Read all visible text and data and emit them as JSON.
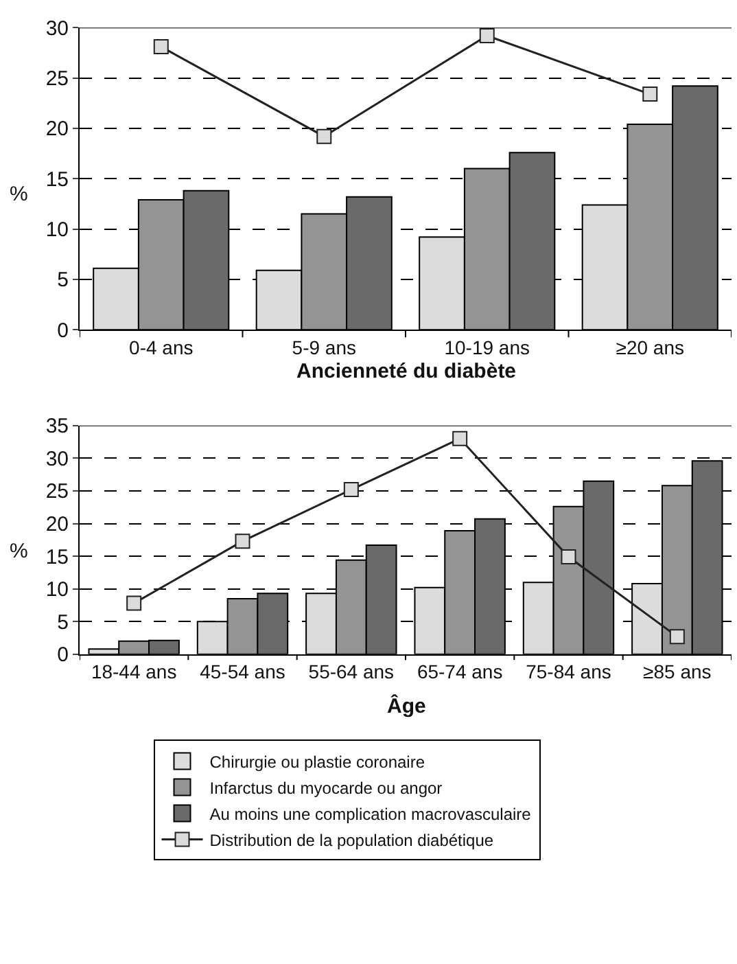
{
  "chart_data": [
    {
      "type": "bar",
      "xlabel": "Ancienneté du diabète",
      "ylabel": "%",
      "categories": [
        "0-4 ans",
        "5-9 ans",
        "10-19 ans",
        "≥20 ans"
      ],
      "ylim": [
        0,
        30
      ],
      "yticks": [
        0,
        5,
        10,
        15,
        20,
        25,
        30
      ],
      "grid": "y",
      "legend": false,
      "marker": "square",
      "series": [
        {
          "color": "#dcdcdc",
          "values": [
            6.1,
            5.9,
            9.2,
            12.4
          ]
        },
        {
          "color": "#949494",
          "values": [
            12.9,
            11.5,
            16.0,
            20.4
          ]
        },
        {
          "color": "#6a6a6a",
          "values": [
            13.8,
            13.2,
            17.6,
            24.2
          ]
        },
        {
          "type": "line",
          "color": "#222222",
          "values": [
            28.1,
            19.2,
            29.2,
            23.4
          ]
        }
      ]
    },
    {
      "type": "bar",
      "xlabel": "Âge",
      "ylabel": "%",
      "categories": [
        "18-44 ans",
        "45-54 ans",
        "55-64 ans",
        "65-74 ans",
        "75-84 ans",
        "≥85 ans"
      ],
      "ylim": [
        0,
        35
      ],
      "yticks": [
        0,
        5,
        10,
        15,
        20,
        25,
        30,
        35
      ],
      "grid": "y",
      "legend": "bottom",
      "marker": "square",
      "series": [
        {
          "name": "Chirurgie ou plastie coronaire",
          "color": "#dcdcdc",
          "values": [
            0.8,
            5.0,
            9.3,
            10.2,
            11.0,
            10.8
          ]
        },
        {
          "name": "Infarctus du myocarde ou angor",
          "color": "#949494",
          "values": [
            2.0,
            8.5,
            14.4,
            18.9,
            22.6,
            25.8
          ]
        },
        {
          "name": "Au moins une complication macrovasculaire",
          "color": "#6a6a6a",
          "values": [
            2.1,
            9.3,
            16.7,
            20.7,
            26.5,
            29.6
          ]
        },
        {
          "name": "Distribution de la population diabétique",
          "type": "line",
          "color": "#222222",
          "values": [
            7.8,
            17.3,
            25.2,
            33.0,
            14.9,
            2.7
          ]
        }
      ]
    }
  ]
}
